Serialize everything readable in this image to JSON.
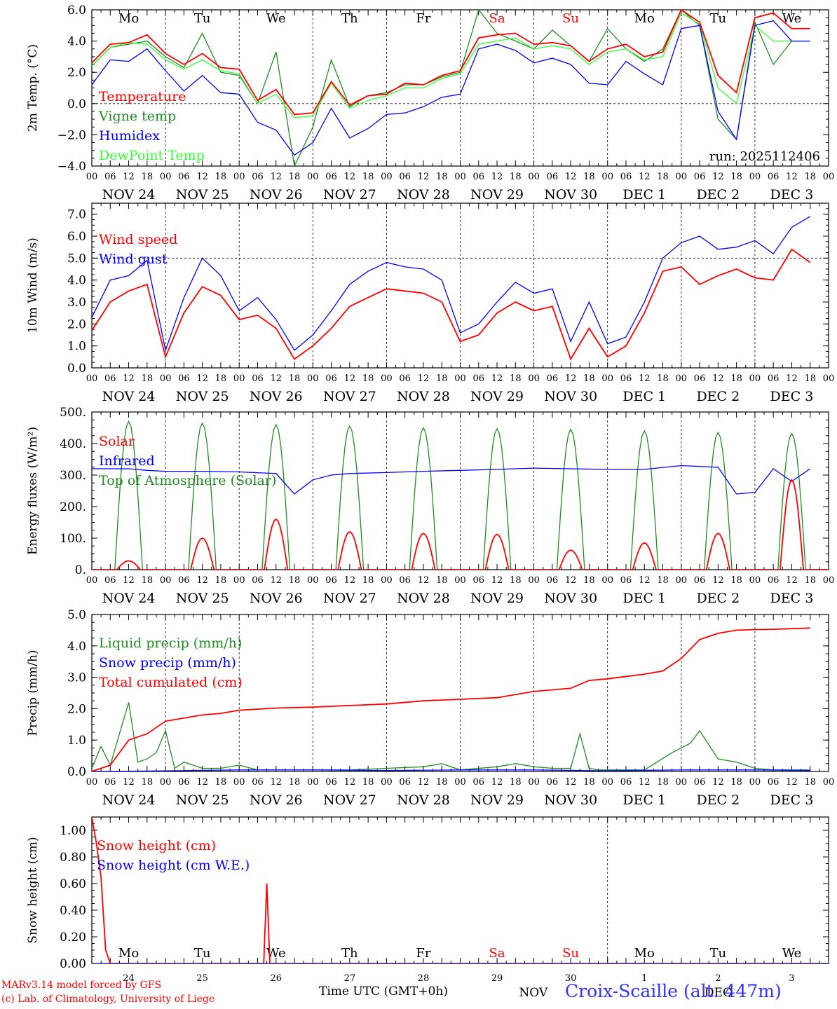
{
  "colors": {
    "red": "#ff0000",
    "green": "#228b22",
    "blue": "#0000ff",
    "lightgreen": "#33ff33",
    "station": "#3333ff",
    "weekend": "#ff0000"
  },
  "day_labels": [
    "Mo",
    "Tu",
    "We",
    "Th",
    "Fr",
    "Sa",
    "Su",
    "Mo",
    "Tu",
    "We"
  ],
  "weekend_days": [
    5,
    6
  ],
  "date_labels": [
    "NOV 24",
    "NOV 25",
    "NOV 26",
    "NOV 27",
    "NOV 28",
    "NOV 29",
    "NOV 30",
    "DEC  1",
    "DEC  2",
    "DEC  3"
  ],
  "hour_ticks": [
    "00",
    "06",
    "12",
    "18"
  ],
  "run_label": "run: 2025112406",
  "bottom_day_numbers": [
    "24",
    "25",
    "26",
    "27",
    "28",
    "29",
    "30",
    "1",
    "2",
    "3"
  ],
  "bottom_months": [
    "NOV",
    "DEC"
  ],
  "footer": {
    "credit1": "MARv3.14 model forced by GFS",
    "credit2": "(c) Lab. of Climatology, University of Liege",
    "axis_title": "Time UTC (GMT+0h)",
    "station": "Croix-Scaille (alt. 447m)"
  },
  "chart_data": [
    {
      "type": "line",
      "ylabel": "2m Temp. (°C)",
      "ylim": [
        -4,
        6
      ],
      "yticks": [
        "6.0",
        "4.0",
        "2.0",
        "0.0",
        "−2.0",
        "−4.0"
      ],
      "ytick_values": [
        6,
        4,
        2,
        0,
        -2,
        -4
      ],
      "ref_line": 0,
      "show_days": true,
      "x_unit": "hours since NOV 24 00 UTC",
      "series": [
        {
          "name": "Vigne temp",
          "color": "#228b22",
          "x": [
            0,
            6,
            12,
            18,
            24,
            30,
            36,
            42,
            48,
            54,
            60,
            66,
            72,
            78,
            84,
            90,
            96,
            102,
            108,
            114,
            120,
            126,
            132,
            138,
            144,
            150,
            156,
            162,
            168,
            174,
            180,
            186,
            192,
            198,
            204,
            210,
            216,
            222,
            228,
            234
          ],
          "y": [
            2.4,
            3.6,
            3.8,
            4.0,
            3.0,
            2.3,
            4.5,
            2.0,
            1.8,
            0.0,
            3.3,
            -4.0,
            -1.5,
            2.8,
            -0.2,
            0.5,
            0.7,
            1.2,
            1.2,
            1.7,
            2.0,
            6.0,
            4.5,
            4.0,
            3.5,
            4.7,
            3.7,
            2.7,
            4.8,
            3.5,
            2.7,
            3.5,
            6.0,
            5.0,
            -1.0,
            -2.3,
            5.2,
            2.5,
            4.0,
            4.0
          ]
        },
        {
          "name": "DewPoint Temp",
          "color": "#33ff33",
          "x": [
            0,
            6,
            12,
            18,
            24,
            30,
            36,
            42,
            48,
            54,
            60,
            66,
            72,
            78,
            84,
            90,
            96,
            102,
            108,
            114,
            120,
            126,
            132,
            138,
            144,
            150,
            156,
            162,
            168,
            174,
            180,
            186,
            192,
            198,
            204,
            210,
            216,
            222,
            228,
            234
          ],
          "y": [
            2.4,
            3.6,
            3.9,
            3.8,
            2.8,
            2.2,
            2.8,
            2.1,
            1.9,
            0.0,
            0.6,
            -0.9,
            -0.8,
            1.3,
            -0.3,
            0.2,
            0.5,
            1.0,
            1.0,
            1.6,
            1.9,
            3.8,
            4.0,
            4.2,
            3.5,
            3.7,
            3.5,
            2.5,
            3.3,
            3.5,
            2.8,
            3.0,
            5.8,
            5.1,
            1.0,
            0.0,
            5.0,
            4.0,
            4.0,
            4.0
          ]
        },
        {
          "name": "Temperature",
          "color": "#ff0000",
          "x": [
            0,
            6,
            12,
            18,
            24,
            30,
            36,
            42,
            48,
            54,
            60,
            66,
            72,
            78,
            84,
            90,
            96,
            102,
            108,
            114,
            120,
            126,
            132,
            138,
            144,
            150,
            156,
            162,
            168,
            174,
            180,
            186,
            192,
            198,
            204,
            210,
            216,
            222,
            228,
            234
          ],
          "y": [
            2.6,
            3.8,
            3.9,
            4.4,
            3.2,
            2.5,
            3.2,
            2.3,
            2.2,
            0.2,
            0.9,
            -0.7,
            -0.6,
            1.4,
            -0.1,
            0.5,
            0.6,
            1.3,
            1.2,
            1.8,
            2.1,
            4.2,
            4.4,
            4.5,
            3.8,
            3.9,
            3.7,
            2.7,
            3.5,
            3.8,
            3.0,
            3.3,
            6.0,
            5.2,
            1.8,
            0.7,
            5.5,
            5.8,
            4.8,
            4.8
          ]
        },
        {
          "name": "Humidex",
          "color": "#0000ff",
          "x": [
            0,
            6,
            12,
            18,
            24,
            30,
            36,
            42,
            48,
            54,
            60,
            66,
            72,
            78,
            84,
            90,
            96,
            102,
            108,
            114,
            120,
            126,
            132,
            138,
            144,
            150,
            156,
            162,
            168,
            174,
            180,
            186,
            192,
            198,
            204,
            210,
            216,
            222,
            228,
            234
          ],
          "y": [
            1.2,
            2.8,
            2.7,
            3.5,
            2.1,
            0.8,
            1.8,
            0.7,
            0.6,
            -1.2,
            -1.7,
            -3.3,
            -2.5,
            -0.3,
            -2.2,
            -1.6,
            -0.7,
            -0.6,
            -0.2,
            0.4,
            0.6,
            3.5,
            3.8,
            3.4,
            2.6,
            2.9,
            2.5,
            1.3,
            1.2,
            2.7,
            1.9,
            1.2,
            4.8,
            5.0,
            -0.5,
            -2.3,
            5.0,
            5.3,
            4.0,
            4.0
          ]
        }
      ],
      "legend": [
        "Temperature",
        "Vigne temp",
        "Humidex",
        "DewPoint Temp"
      ]
    },
    {
      "type": "line",
      "ylabel": "10m Wind (m/s)",
      "ylim": [
        0,
        7.5
      ],
      "yticks": [
        "7.0",
        "6.0",
        "5.0",
        "4.0",
        "3.0",
        "2.0",
        "1.0",
        "0.0"
      ],
      "ytick_values": [
        7,
        6,
        5,
        4,
        3,
        2,
        1,
        0
      ],
      "ref_line": 5,
      "show_days": false,
      "x_unit": "hours since NOV 24 00 UTC",
      "series": [
        {
          "name": "Wind gust",
          "color": "#0000ff",
          "x": [
            0,
            6,
            12,
            18,
            24,
            30,
            36,
            42,
            48,
            54,
            60,
            66,
            72,
            78,
            84,
            90,
            96,
            102,
            108,
            114,
            120,
            126,
            132,
            138,
            144,
            150,
            156,
            162,
            168,
            174,
            180,
            186,
            192,
            198,
            204,
            210,
            216,
            222,
            228,
            234
          ],
          "y": [
            2.3,
            4.0,
            4.2,
            4.9,
            0.8,
            3.2,
            5.0,
            4.2,
            2.6,
            3.2,
            2.2,
            0.8,
            1.5,
            2.6,
            3.8,
            4.4,
            4.8,
            4.6,
            4.5,
            4.0,
            1.6,
            2.0,
            3.0,
            3.9,
            3.4,
            3.6,
            1.2,
            3.0,
            1.1,
            1.4,
            3.0,
            5.0,
            5.7,
            6.0,
            5.4,
            5.5,
            5.8,
            5.2,
            6.4,
            6.9
          ]
        },
        {
          "name": "Wind speed",
          "color": "#ff0000",
          "x": [
            0,
            6,
            12,
            18,
            24,
            30,
            36,
            42,
            48,
            54,
            60,
            66,
            72,
            78,
            84,
            90,
            96,
            102,
            108,
            114,
            120,
            126,
            132,
            138,
            144,
            150,
            156,
            162,
            168,
            174,
            180,
            186,
            192,
            198,
            204,
            210,
            216,
            222,
            228,
            234
          ],
          "y": [
            1.7,
            3.0,
            3.5,
            3.8,
            0.5,
            2.5,
            3.7,
            3.3,
            2.2,
            2.4,
            1.8,
            0.4,
            1.0,
            1.8,
            2.8,
            3.2,
            3.6,
            3.5,
            3.4,
            3.0,
            1.2,
            1.5,
            2.5,
            3.0,
            2.6,
            2.8,
            0.4,
            1.8,
            0.5,
            1.0,
            2.5,
            4.4,
            4.6,
            3.8,
            4.2,
            4.5,
            4.1,
            4.0,
            5.4,
            4.8
          ]
        }
      ],
      "legend": [
        "Wind speed",
        "Wind gust"
      ]
    },
    {
      "type": "line",
      "ylabel": "Energy fluxes (W/m²)",
      "ylim": [
        0,
        500
      ],
      "yticks": [
        "500.",
        "400.",
        "300.",
        "200.",
        "100.",
        "0."
      ],
      "ytick_values": [
        500,
        400,
        300,
        200,
        100,
        0
      ],
      "show_days": false,
      "x_unit": "hours since NOV 24 00 UTC",
      "series": [
        {
          "name": "Top of Atmosphere (Solar)",
          "color": "#228b22",
          "daily_peaks": [
            470,
            465,
            460,
            455,
            450,
            447,
            445,
            440,
            435,
            432
          ],
          "peak_hour": 12,
          "half_width_hours": 4.5
        },
        {
          "name": "Infrared",
          "color": "#0000ff",
          "x": [
            0,
            12,
            18,
            24,
            36,
            48,
            60,
            66,
            72,
            78,
            84,
            96,
            108,
            120,
            132,
            144,
            156,
            168,
            180,
            192,
            204,
            210,
            216,
            222,
            228,
            234
          ],
          "y": [
            320,
            320,
            315,
            312,
            312,
            310,
            305,
            240,
            285,
            300,
            305,
            308,
            312,
            315,
            318,
            322,
            320,
            318,
            318,
            330,
            325,
            240,
            245,
            320,
            280,
            320
          ]
        },
        {
          "name": "Solar",
          "color": "#ff0000",
          "daily_peaks": [
            28,
            100,
            160,
            120,
            115,
            112,
            62,
            85,
            115,
            285
          ],
          "peak_hour": 12,
          "half_width_hours": 3.8
        }
      ],
      "legend": [
        "Solar",
        "Infrared",
        "Top of Atmosphere (Solar)"
      ]
    },
    {
      "type": "line",
      "ylabel": "Precip (mm/h)",
      "ylim": [
        0,
        5
      ],
      "yticks": [
        "5.0",
        "4.0",
        "3.0",
        "2.0",
        "1.0",
        "0.0"
      ],
      "ytick_values": [
        5,
        4,
        3,
        2,
        1,
        0
      ],
      "show_days": false,
      "x_unit": "hours since NOV 24 00 UTC",
      "series": [
        {
          "name": "Liquid precip (mm/h)",
          "color": "#228b22",
          "x": [
            0,
            3,
            6,
            9,
            12,
            15,
            18,
            21,
            24,
            27,
            30,
            36,
            42,
            48,
            54,
            60,
            66,
            72,
            84,
            96,
            108,
            114,
            120,
            132,
            138,
            144,
            150,
            156,
            159,
            162,
            165,
            168,
            180,
            189,
            195,
            198,
            204,
            210,
            216,
            222,
            228,
            234
          ],
          "y": [
            0.1,
            0.8,
            0.2,
            1.2,
            2.2,
            0.3,
            0.4,
            0.6,
            1.3,
            0.1,
            0.3,
            0.1,
            0.1,
            0.2,
            0.05,
            0.05,
            0.05,
            0.05,
            0.05,
            0.1,
            0.15,
            0.25,
            0.05,
            0.15,
            0.25,
            0.15,
            0.1,
            0.1,
            1.2,
            0.1,
            0.05,
            0.05,
            0.05,
            0.6,
            0.9,
            1.3,
            0.4,
            0.3,
            0.1,
            0.05,
            0.05,
            0.05
          ]
        },
        {
          "name": "Snow precip (mm/h)",
          "color": "#0000ff",
          "x": [
            0,
            24,
            48,
            72,
            96,
            120,
            144,
            168,
            192,
            216,
            234
          ],
          "y": [
            0.0,
            0.02,
            0.05,
            0.05,
            0.03,
            0.05,
            0.05,
            0.02,
            0.05,
            0.05,
            0.03
          ]
        },
        {
          "name": "Total cumulated (cm)",
          "color": "#ff0000",
          "x": [
            0,
            6,
            12,
            18,
            24,
            30,
            36,
            42,
            48,
            60,
            72,
            84,
            96,
            108,
            120,
            132,
            144,
            150,
            156,
            162,
            168,
            180,
            186,
            192,
            198,
            204,
            210,
            216,
            222,
            228,
            234
          ],
          "y": [
            0.0,
            0.2,
            1.0,
            1.2,
            1.6,
            1.7,
            1.8,
            1.85,
            1.95,
            2.02,
            2.05,
            2.1,
            2.15,
            2.25,
            2.3,
            2.35,
            2.55,
            2.6,
            2.65,
            2.9,
            2.95,
            3.1,
            3.2,
            3.6,
            4.2,
            4.4,
            4.5,
            4.52,
            4.53,
            4.55,
            4.57
          ]
        }
      ],
      "legend": [
        "Liquid precip (mm/h)",
        "Snow precip (mm/h)",
        "Total cumulated (cm)"
      ]
    },
    {
      "type": "line",
      "ylabel": "Snow height (cm)",
      "ylim": [
        0,
        1.1
      ],
      "yticks": [
        "1.00",
        "0.80",
        "0.60",
        "0.40",
        "0.20",
        "0.00"
      ],
      "ytick_values": [
        1.0,
        0.8,
        0.6,
        0.4,
        0.2,
        0.0
      ],
      "show_days": true,
      "x_unit": "hours since NOV 24 00 UTC",
      "series": [
        {
          "name": "Snow height (cm)",
          "color": "#ff0000",
          "x": [
            0,
            1.5,
            3,
            4.5,
            6,
            54,
            56,
            57,
            58,
            60,
            240
          ],
          "y": [
            1.1,
            0.9,
            0.65,
            0.1,
            0.0,
            0.0,
            0.0,
            0.6,
            0.0,
            0.0,
            0.0
          ]
        },
        {
          "name": "Snow height (cm W.E.)",
          "color": "#0000ff",
          "x": [
            0,
            240
          ],
          "y": [
            0.0,
            0.0
          ]
        }
      ],
      "legend": [
        "Snow height (cm)",
        "Snow height (cm W.E.)"
      ]
    }
  ]
}
